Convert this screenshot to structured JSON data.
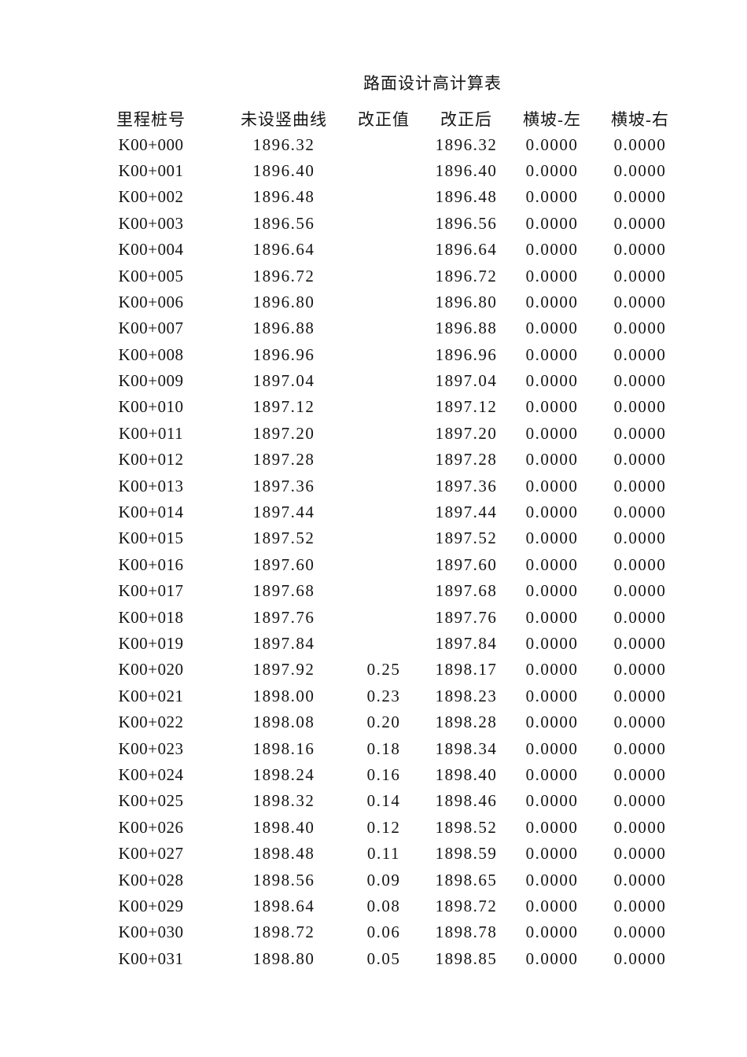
{
  "document": {
    "title": "路面设计高计算表"
  },
  "table": {
    "columns": [
      "里程桩号",
      "未设竖曲线",
      "改正值",
      "改正后",
      "横坡-左",
      "横坡-右"
    ],
    "rows": [
      [
        "K00+000",
        "1896.32",
        "",
        "1896.32",
        "0.0000",
        "0.0000"
      ],
      [
        "K00+001",
        "1896.40",
        "",
        "1896.40",
        "0.0000",
        "0.0000"
      ],
      [
        "K00+002",
        "1896.48",
        "",
        "1896.48",
        "0.0000",
        "0.0000"
      ],
      [
        "K00+003",
        "1896.56",
        "",
        "1896.56",
        "0.0000",
        "0.0000"
      ],
      [
        "K00+004",
        "1896.64",
        "",
        "1896.64",
        "0.0000",
        "0.0000"
      ],
      [
        "K00+005",
        "1896.72",
        "",
        "1896.72",
        "0.0000",
        "0.0000"
      ],
      [
        "K00+006",
        "1896.80",
        "",
        "1896.80",
        "0.0000",
        "0.0000"
      ],
      [
        "K00+007",
        "1896.88",
        "",
        "1896.88",
        "0.0000",
        "0.0000"
      ],
      [
        "K00+008",
        "1896.96",
        "",
        "1896.96",
        "0.0000",
        "0.0000"
      ],
      [
        "K00+009",
        "1897.04",
        "",
        "1897.04",
        "0.0000",
        "0.0000"
      ],
      [
        "K00+010",
        "1897.12",
        "",
        "1897.12",
        "0.0000",
        "0.0000"
      ],
      [
        "K00+011",
        "1897.20",
        "",
        "1897.20",
        "0.0000",
        "0.0000"
      ],
      [
        "K00+012",
        "1897.28",
        "",
        "1897.28",
        "0.0000",
        "0.0000"
      ],
      [
        "K00+013",
        "1897.36",
        "",
        "1897.36",
        "0.0000",
        "0.0000"
      ],
      [
        "K00+014",
        "1897.44",
        "",
        "1897.44",
        "0.0000",
        "0.0000"
      ],
      [
        "K00+015",
        "1897.52",
        "",
        "1897.52",
        "0.0000",
        "0.0000"
      ],
      [
        "K00+016",
        "1897.60",
        "",
        "1897.60",
        "0.0000",
        "0.0000"
      ],
      [
        "K00+017",
        "1897.68",
        "",
        "1897.68",
        "0.0000",
        "0.0000"
      ],
      [
        "K00+018",
        "1897.76",
        "",
        "1897.76",
        "0.0000",
        "0.0000"
      ],
      [
        "K00+019",
        "1897.84",
        "",
        "1897.84",
        "0.0000",
        "0.0000"
      ],
      [
        "K00+020",
        "1897.92",
        "0.25",
        "1898.17",
        "0.0000",
        "0.0000"
      ],
      [
        "K00+021",
        "1898.00",
        "0.23",
        "1898.23",
        "0.0000",
        "0.0000"
      ],
      [
        "K00+022",
        "1898.08",
        "0.20",
        "1898.28",
        "0.0000",
        "0.0000"
      ],
      [
        "K00+023",
        "1898.16",
        "0.18",
        "1898.34",
        "0.0000",
        "0.0000"
      ],
      [
        "K00+024",
        "1898.24",
        "0.16",
        "1898.40",
        "0.0000",
        "0.0000"
      ],
      [
        "K00+025",
        "1898.32",
        "0.14",
        "1898.46",
        "0.0000",
        "0.0000"
      ],
      [
        "K00+026",
        "1898.40",
        "0.12",
        "1898.52",
        "0.0000",
        "0.0000"
      ],
      [
        "K00+027",
        "1898.48",
        "0.11",
        "1898.59",
        "0.0000",
        "0.0000"
      ],
      [
        "K00+028",
        "1898.56",
        "0.09",
        "1898.65",
        "0.0000",
        "0.0000"
      ],
      [
        "K00+029",
        "1898.64",
        "0.08",
        "1898.72",
        "0.0000",
        "0.0000"
      ],
      [
        "K00+030",
        "1898.72",
        "0.06",
        "1898.78",
        "0.0000",
        "0.0000"
      ],
      [
        "K00+031",
        "1898.80",
        "0.05",
        "1898.85",
        "0.0000",
        "0.0000"
      ]
    ]
  }
}
